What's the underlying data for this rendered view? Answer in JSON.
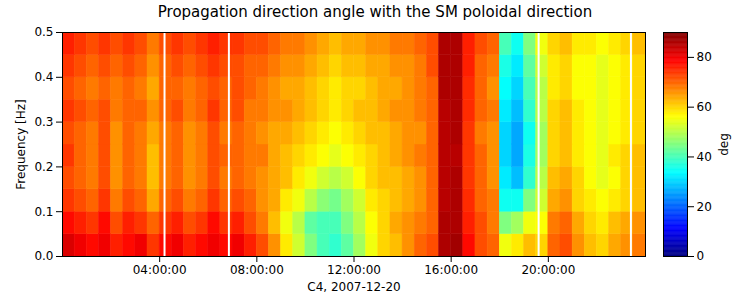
{
  "chart_data": {
    "type": "heatmap",
    "title": "Propagation direction angle with the SM poloidal direction",
    "xlabel": "C4, 2007-12-20",
    "ylabel": "Frequency [Hz]",
    "xlim": [
      0,
      24
    ],
    "xticks": [
      {
        "value": 4,
        "label": "04:00:00"
      },
      {
        "value": 8,
        "label": "08:00:00"
      },
      {
        "value": 12,
        "label": "12:00:00"
      },
      {
        "value": 16,
        "label": "16:00:00"
      },
      {
        "value": 20,
        "label": "20:00:00"
      }
    ],
    "ylim": [
      0,
      0.5
    ],
    "yticks": [
      {
        "value": 0,
        "label": "0.0"
      },
      0.1,
      0.2,
      0.3,
      0.4,
      0.5
    ],
    "x_edges": [
      0,
      0.5,
      1,
      1.5,
      2,
      2.5,
      3,
      3.5,
      4,
      4.5,
      5,
      5.5,
      6,
      6.5,
      7,
      7.5,
      8,
      8.5,
      9,
      9.5,
      10,
      10.5,
      11,
      11.5,
      12,
      12.5,
      13,
      13.5,
      14,
      14.5,
      15,
      15.5,
      16,
      16.5,
      17,
      17.5,
      18,
      18.5,
      19,
      19.5,
      20,
      20.5,
      21,
      21.5,
      22,
      22.5,
      23,
      23.5,
      24
    ],
    "y_edges": [
      0,
      0.05,
      0.1,
      0.15,
      0.2,
      0.25,
      0.3,
      0.35,
      0.4,
      0.45,
      0.5
    ],
    "values": [
      [
        82,
        80,
        78,
        80,
        76,
        78,
        80,
        74,
        78,
        80,
        76,
        78,
        80,
        78,
        80,
        76,
        72,
        66,
        58,
        52,
        45,
        40,
        38,
        42,
        48,
        55,
        60,
        62,
        66,
        70,
        72,
        86,
        87,
        78,
        72,
        70,
        55,
        58,
        62,
        60,
        70,
        72,
        66,
        62,
        60,
        64,
        66,
        68
      ],
      [
        78,
        76,
        74,
        78,
        72,
        76,
        74,
        70,
        74,
        76,
        72,
        74,
        78,
        74,
        76,
        72,
        68,
        62,
        55,
        50,
        42,
        40,
        40,
        45,
        50,
        56,
        60,
        64,
        66,
        68,
        70,
        86,
        86,
        76,
        72,
        68,
        45,
        48,
        55,
        56,
        68,
        70,
        64,
        60,
        58,
        62,
        64,
        66
      ],
      [
        74,
        72,
        70,
        74,
        68,
        72,
        70,
        64,
        70,
        72,
        68,
        70,
        74,
        70,
        72,
        70,
        66,
        64,
        58,
        55,
        50,
        46,
        44,
        48,
        52,
        58,
        60,
        62,
        64,
        66,
        70,
        85,
        86,
        75,
        70,
        68,
        35,
        35,
        45,
        52,
        64,
        66,
        60,
        58,
        56,
        58,
        60,
        62
      ],
      [
        72,
        70,
        68,
        72,
        66,
        70,
        68,
        62,
        68,
        70,
        66,
        68,
        72,
        68,
        70,
        68,
        66,
        64,
        62,
        58,
        55,
        52,
        50,
        52,
        56,
        60,
        62,
        62,
        64,
        66,
        70,
        85,
        86,
        74,
        70,
        66,
        32,
        28,
        38,
        50,
        62,
        64,
        60,
        56,
        54,
        56,
        60,
        62
      ],
      [
        74,
        70,
        68,
        72,
        66,
        70,
        68,
        62,
        68,
        70,
        66,
        68,
        72,
        70,
        70,
        68,
        68,
        64,
        62,
        60,
        58,
        56,
        54,
        56,
        58,
        60,
        62,
        64,
        66,
        68,
        70,
        85,
        85,
        74,
        70,
        66,
        30,
        26,
        36,
        48,
        60,
        62,
        58,
        56,
        54,
        58,
        60,
        62
      ],
      [
        72,
        70,
        68,
        72,
        66,
        70,
        68,
        64,
        68,
        70,
        66,
        68,
        72,
        68,
        70,
        68,
        66,
        64,
        64,
        62,
        60,
        58,
        56,
        58,
        60,
        62,
        62,
        64,
        66,
        66,
        70,
        85,
        86,
        74,
        68,
        66,
        30,
        26,
        35,
        48,
        60,
        62,
        58,
        56,
        54,
        56,
        58,
        60
      ],
      [
        74,
        72,
        70,
        72,
        68,
        70,
        70,
        66,
        70,
        72,
        68,
        70,
        74,
        70,
        72,
        68,
        68,
        66,
        66,
        64,
        62,
        60,
        58,
        60,
        62,
        62,
        64,
        66,
        66,
        68,
        70,
        85,
        86,
        75,
        70,
        68,
        32,
        28,
        38,
        50,
        60,
        62,
        58,
        56,
        54,
        56,
        58,
        60
      ],
      [
        72,
        70,
        68,
        70,
        68,
        70,
        68,
        64,
        70,
        70,
        68,
        70,
        72,
        70,
        72,
        70,
        68,
        66,
        64,
        64,
        62,
        60,
        58,
        60,
        60,
        62,
        64,
        64,
        66,
        68,
        70,
        86,
        86,
        75,
        70,
        66,
        34,
        30,
        40,
        50,
        58,
        60,
        56,
        56,
        54,
        56,
        58,
        60
      ],
      [
        74,
        72,
        70,
        72,
        70,
        72,
        70,
        66,
        70,
        72,
        70,
        72,
        74,
        72,
        72,
        70,
        70,
        68,
        66,
        66,
        64,
        62,
        60,
        62,
        62,
        64,
        64,
        66,
        66,
        68,
        72,
        86,
        86,
        76,
        70,
        68,
        36,
        32,
        42,
        52,
        58,
        60,
        56,
        56,
        54,
        56,
        58,
        60
      ],
      [
        76,
        74,
        72,
        74,
        72,
        74,
        72,
        68,
        72,
        74,
        72,
        74,
        76,
        74,
        74,
        72,
        72,
        70,
        68,
        68,
        66,
        64,
        62,
        64,
        64,
        66,
        66,
        68,
        68,
        70,
        72,
        86,
        86,
        76,
        72,
        70,
        40,
        35,
        45,
        55,
        60,
        62,
        58,
        58,
        56,
        58,
        60,
        62
      ]
    ],
    "data_gaps": [
      4.2,
      6.85,
      19.6,
      23.4
    ],
    "colorbar": {
      "range": [
        0,
        90
      ],
      "ticks": [
        0,
        20,
        40,
        60,
        80
      ],
      "label": "deg"
    }
  }
}
